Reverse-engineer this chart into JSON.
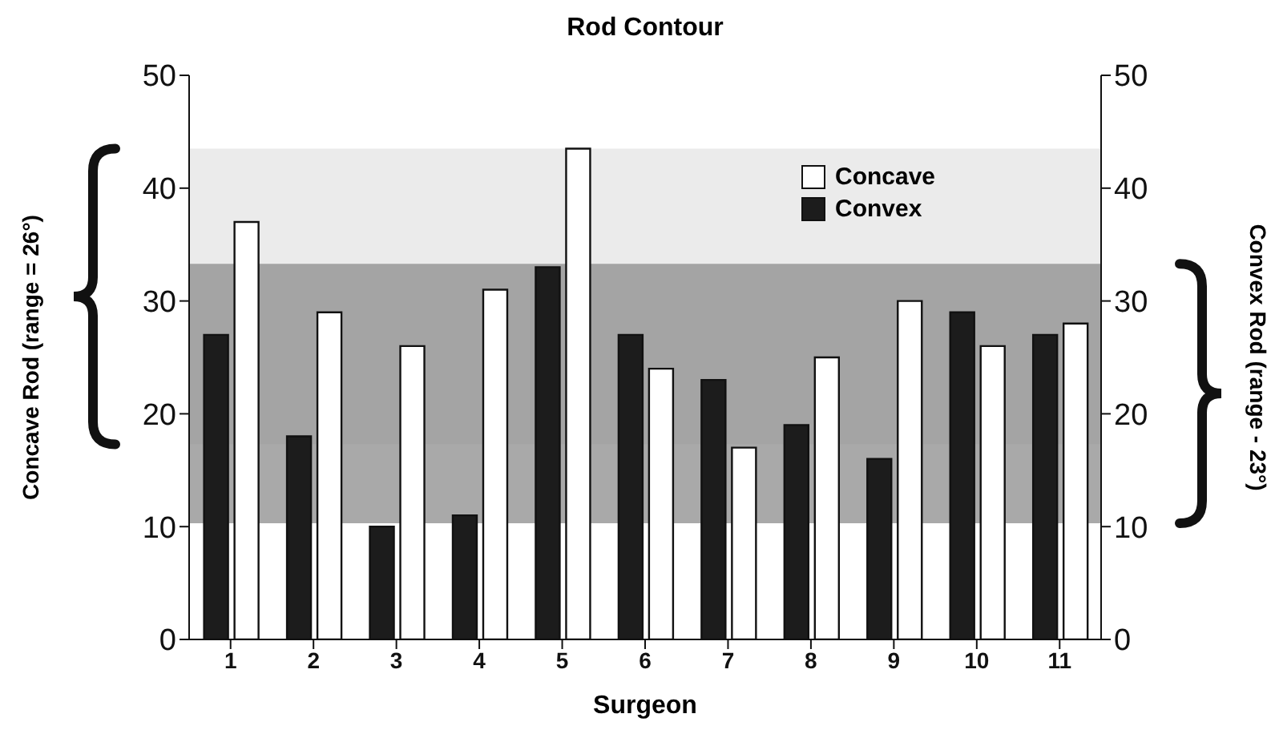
{
  "chart_data": {
    "type": "bar",
    "title": "Rod Contour",
    "xlabel": "Surgeon",
    "ylabel": "Concave Rod (range = 26°)",
    "y2label": "Convex Rod (range - 23°)",
    "categories": [
      "1",
      "2",
      "3",
      "4",
      "5",
      "6",
      "7",
      "8",
      "9",
      "10",
      "11"
    ],
    "series": [
      {
        "name": "Convex",
        "color": "#1c1c1c",
        "values": [
          27,
          18,
          10,
          11,
          33,
          27,
          23,
          19,
          16,
          29,
          27
        ]
      },
      {
        "name": "Concave",
        "color": "#ffffff",
        "values": [
          37,
          29,
          26,
          31,
          43.5,
          24,
          17,
          25,
          30,
          26,
          28
        ]
      }
    ],
    "ylim": [
      0,
      50
    ],
    "yticks": [
      0,
      10,
      20,
      30,
      40,
      50
    ],
    "y2lim": [
      0,
      50
    ],
    "y2ticks": [
      0,
      10,
      20,
      30,
      40,
      50
    ],
    "bands": [
      {
        "axis": "y",
        "from": 17.3,
        "to": 43.5,
        "color": "#e4e4e4"
      },
      {
        "axis": "y2",
        "from": 10.3,
        "to": 33.3,
        "color": "#8c8c8c"
      }
    ],
    "grid": false,
    "legend": "top right"
  }
}
